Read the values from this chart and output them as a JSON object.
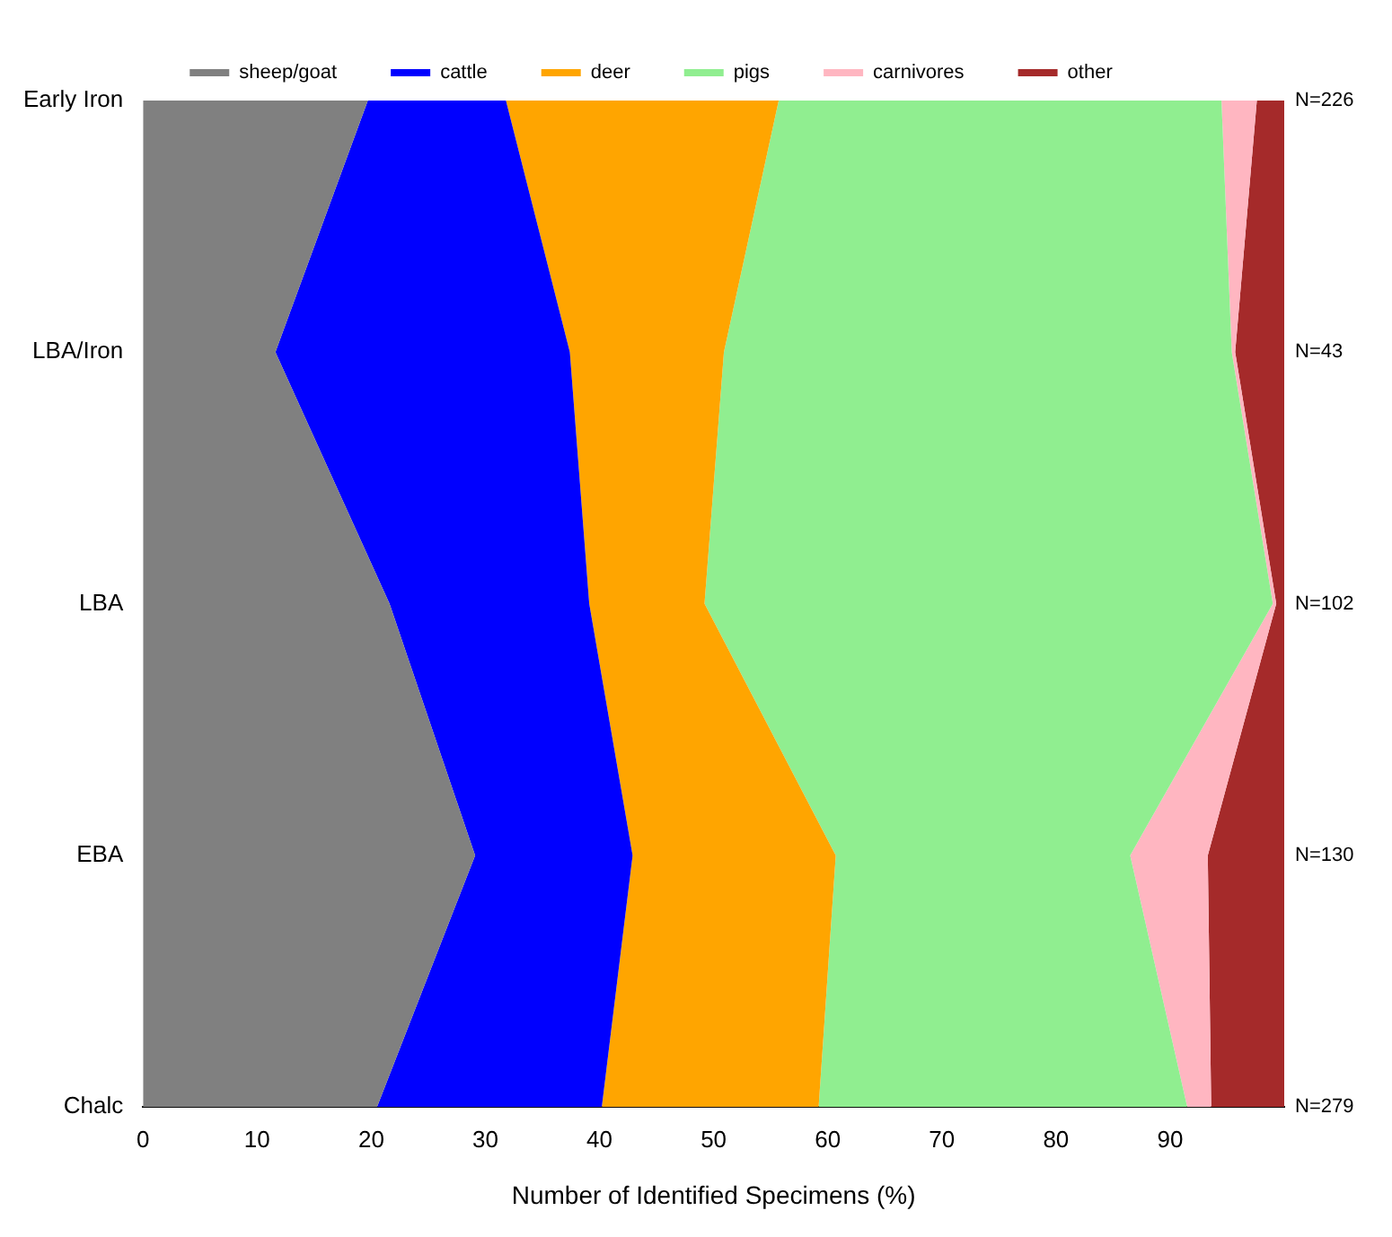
{
  "chart_data": {
    "type": "area",
    "orientation": "horizontal",
    "stacked": true,
    "xlabel": "Number of Identified Specimens (%)",
    "categories": [
      "Early Iron",
      "LBA/Iron",
      "LBA",
      "EBA",
      "Chalc"
    ],
    "series": [
      {
        "name": "sheep/goat",
        "color": "#808080",
        "values": [
          19.7,
          11.6,
          21.6,
          29.1,
          20.5
        ]
      },
      {
        "name": "cattle",
        "color": "#0000ff",
        "values": [
          12.1,
          25.8,
          17.5,
          13.8,
          19.7
        ]
      },
      {
        "name": "deer",
        "color": "#ffa500",
        "values": [
          23.9,
          13.5,
          10.1,
          17.8,
          19.0
        ]
      },
      {
        "name": "pigs",
        "color": "#90ee90",
        "values": [
          38.8,
          44.5,
          49.8,
          25.8,
          32.3
        ]
      },
      {
        "name": "carnivores",
        "color": "#ffb6c1",
        "values": [
          3.1,
          0.3,
          0.3,
          6.8,
          2.1
        ]
      },
      {
        "name": "other",
        "color": "#a52a2a",
        "values": [
          2.4,
          4.3,
          0.7,
          6.7,
          6.4
        ]
      }
    ],
    "xlim": [
      0,
      100
    ],
    "xticks": [
      0,
      10,
      20,
      30,
      40,
      50,
      60,
      70,
      80,
      90
    ],
    "grid": false,
    "legend": "top",
    "annotations": [
      "N=226",
      "N=43",
      "N=102",
      "N=130",
      "N=279"
    ]
  }
}
